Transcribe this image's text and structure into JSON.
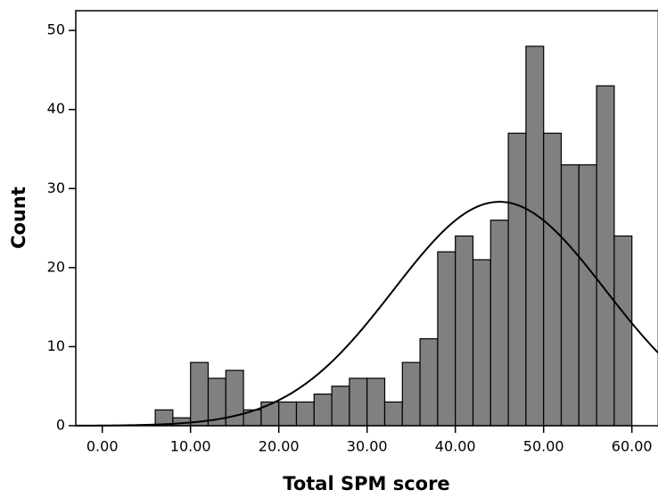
{
  "chart_data": {
    "type": "histogram",
    "x_label": "Total SPM score",
    "y_label": "Count",
    "bins": [
      6,
      8,
      10,
      12,
      14,
      16,
      18,
      20,
      22,
      24,
      26,
      28,
      30,
      32,
      34,
      36,
      38,
      40,
      42,
      44,
      46,
      48,
      50,
      52,
      54,
      56,
      58,
      60
    ],
    "values": [
      2,
      1,
      8,
      6,
      7,
      2,
      3,
      3,
      3,
      4,
      5,
      6,
      6,
      3,
      8,
      11,
      22,
      24,
      21,
      26,
      37,
      48,
      37,
      33,
      33,
      43,
      24
    ],
    "color": "#808080",
    "normal_curve": {
      "mean": 45,
      "std": 12
    },
    "xlim": [
      -3,
      63
    ],
    "ylim": [
      0,
      52.5
    ],
    "xticks": [
      {
        "value": 0,
        "label": "0.00"
      },
      {
        "value": 10,
        "label": "10.00"
      },
      {
        "value": 20,
        "label": "20.00"
      },
      {
        "value": 30,
        "label": "30.00"
      },
      {
        "value": 40,
        "label": "40.00"
      },
      {
        "value": 50,
        "label": "50.00"
      },
      {
        "value": 60,
        "label": "60.00"
      }
    ],
    "yticks": [
      0,
      10,
      20,
      30,
      40,
      50
    ],
    "grid": false
  }
}
